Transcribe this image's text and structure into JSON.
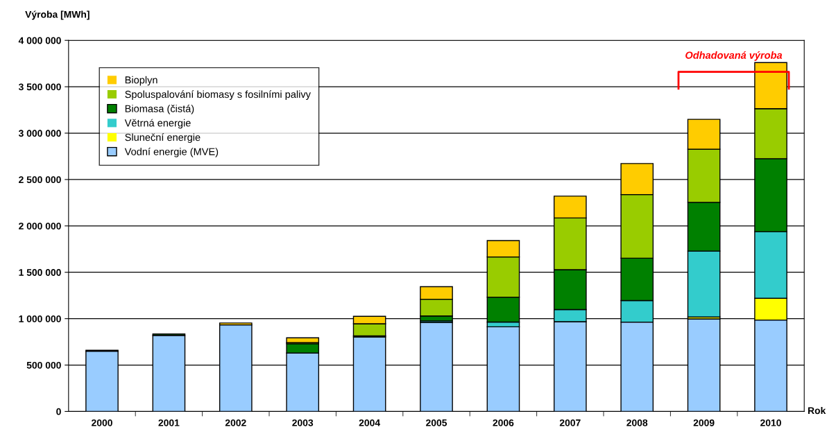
{
  "chart_data": {
    "type": "bar",
    "stacked": true,
    "ylabel": "Výroba [MWh]",
    "xlabel": "Rok",
    "categories": [
      "2000",
      "2001",
      "2002",
      "2003",
      "2004",
      "2005",
      "2006",
      "2007",
      "2008",
      "2009",
      "2010"
    ],
    "series": [
      {
        "name": "Vodní energie (MVE)",
        "color": "#99ccff",
        "values": [
          650000,
          820000,
          933000,
          629000,
          802000,
          960000,
          912000,
          967000,
          963000,
          997000,
          985000
        ]
      },
      {
        "name": "Sluneční energie",
        "color": "#ffff00",
        "values": [
          0,
          0,
          0,
          0,
          0,
          0,
          0,
          0,
          null,
          21000,
          235000
        ]
      },
      {
        "name": "Větrná energie",
        "color": "#33cccc",
        "values": [
          0,
          0,
          0,
          0,
          0,
          16000,
          52000,
          131000,
          232000,
          711000,
          718000
        ]
      },
      {
        "name": "Biomasa (čistá)",
        "color": "#008000",
        "values": [
          10000,
          15000,
          0,
          100000,
          12000,
          53000,
          268000,
          430000,
          457000,
          525000,
          787000
        ]
      },
      {
        "name": "Spoluspalování biomasy s fosilními palivy",
        "color": "#99cc00",
        "values": [
          0,
          0,
          0,
          12000,
          131000,
          180000,
          433000,
          558000,
          686000,
          572000,
          539000
        ]
      },
      {
        "name": "Bioplyn",
        "color": "#ffcc00",
        "values": [
          0,
          0,
          20000,
          53000,
          80000,
          136000,
          177000,
          235000,
          334000,
          323000,
          497000
        ]
      }
    ],
    "ylim": [
      0,
      4000000
    ],
    "yticks": [
      0,
      {
        "value": 500000,
        "label": "500 000"
      },
      {
        "value": 1000000,
        "label": "1 000 000"
      },
      {
        "value": 1500000,
        "label": "1 500 000"
      },
      {
        "value": 2000000,
        "label": "2 000 000"
      },
      {
        "value": 2500000,
        "label": "2 500 000"
      },
      {
        "value": 3000000,
        "label": "3 000 000"
      },
      {
        "value": 3500000,
        "label": "3 500 000"
      },
      {
        "value": 4000000,
        "label": "4 000 000"
      }
    ],
    "grid": "y",
    "legend": "top left",
    "annotations": [
      "Odhadovaná výroba"
    ]
  }
}
